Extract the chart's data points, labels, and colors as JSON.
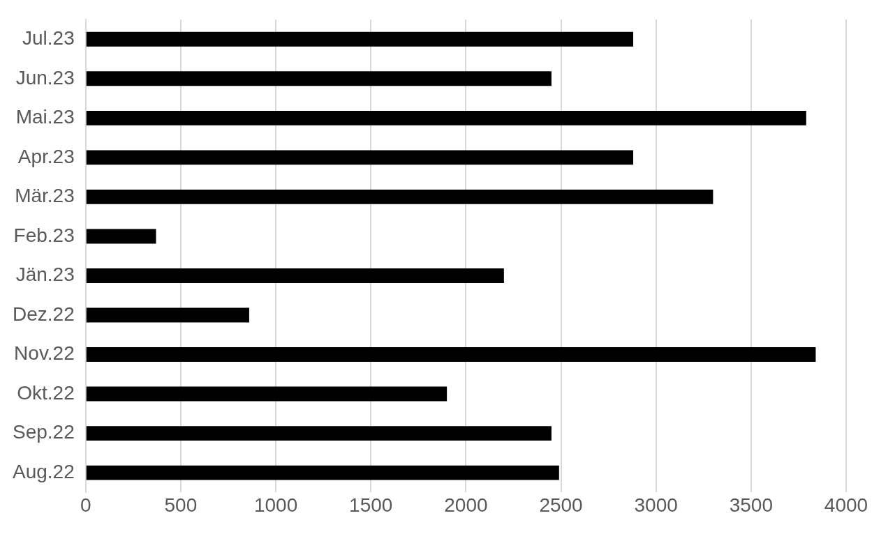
{
  "chart_data": {
    "type": "bar",
    "orientation": "horizontal",
    "categories": [
      "Jul.23",
      "Jun.23",
      "Mai.23",
      "Apr.23",
      "Mär.23",
      "Feb.23",
      "Jän.23",
      "Dez.22",
      "Nov.22",
      "Okt.22",
      "Sep.22",
      "Aug.22"
    ],
    "values": [
      2880,
      2450,
      3790,
      2880,
      3300,
      370,
      2200,
      860,
      3840,
      1900,
      2450,
      2490
    ],
    "color": "#000000",
    "xlim": [
      0,
      4000
    ],
    "xticks": [
      0,
      500,
      1000,
      1500,
      2000,
      2500,
      3000,
      3500,
      4000
    ],
    "grid": "x",
    "legend": false
  }
}
